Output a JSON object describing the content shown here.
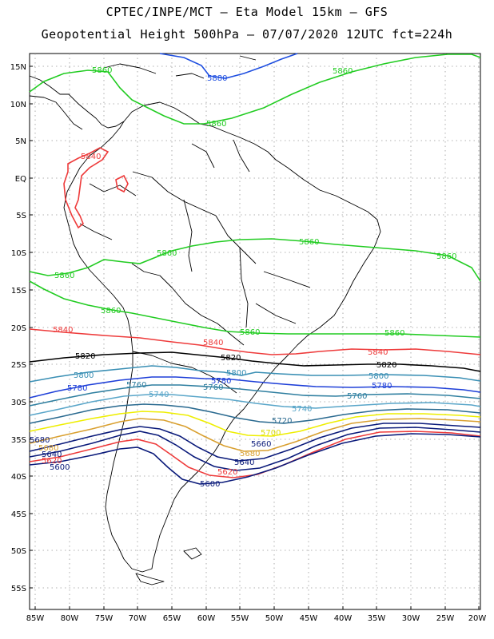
{
  "title_line1": "CPTEC/INPE/MCT –  Eta Model 15km – GFS",
  "title_line2": "Geopotential Height 500hPa – 07/07/2020 12UTC fct=224h",
  "lat_labels": [
    "15N",
    "10N",
    "5N",
    "EQ",
    "5S",
    "10S",
    "15S",
    "20S",
    "25S",
    "30S",
    "35S",
    "40S",
    "45S",
    "50S",
    "55S"
  ],
  "lon_labels": [
    "85W",
    "80W",
    "75W",
    "70W",
    "65W",
    "60W",
    "55W",
    "50W",
    "45W",
    "40W",
    "35W",
    "30W",
    "25W",
    "20W"
  ],
  "colors": {
    "c5880": "#1f4fe0",
    "c5860": "#22cc22",
    "c5840": "#ee3b3b",
    "c5820": "#000000",
    "c5800": "#3a8fb4",
    "c5780": "#1e3fd8",
    "c5760": "#2f7fa0",
    "c5740": "#5aa6c9",
    "c5720": "#2a6a90",
    "c5700": "#eeee00",
    "c5680": "#d9a030",
    "c5660": "#0a1a7a",
    "c5640": "#0a1a7a",
    "c5620": "#ee3b3b",
    "c5600": "#0a1a7a"
  },
  "contour_labels": {
    "l5880a": "5880",
    "l5860a": "5860",
    "l5860b": "5860",
    "l5860c": "5860",
    "l5860d": "5860",
    "l5860e": "5860",
    "l5860f": "5860",
    "l5860g": "5860",
    "l5860h": "5860",
    "l5860i": "5860",
    "l5860j": "5860",
    "l5840a": "5840",
    "l5840b": "5840",
    "l5840c": "5840",
    "l5840d": "5840",
    "l5820a": "5820",
    "l5820b": "5820",
    "l5820c": "5820",
    "l5800a": "5800",
    "l5800b": "5800",
    "l5800c": "5800",
    "l5780a": "5780",
    "l5780b": "5780",
    "l5780c": "5780",
    "l5760a": "5760",
    "l5760b": "5760",
    "l5760c": "5760",
    "l5740a": "5740",
    "l5740b": "5740",
    "l5720": "5720",
    "l5700": "5700",
    "l5680a": "5680",
    "l5680b": "5680",
    "l5680c": "5680",
    "l5660": "5660",
    "l5640a": "5640",
    "l5640b": "5640",
    "l5620a": "5620",
    "l5620b": "5620",
    "l5600a": "5600",
    "l5600b": "5600"
  }
}
